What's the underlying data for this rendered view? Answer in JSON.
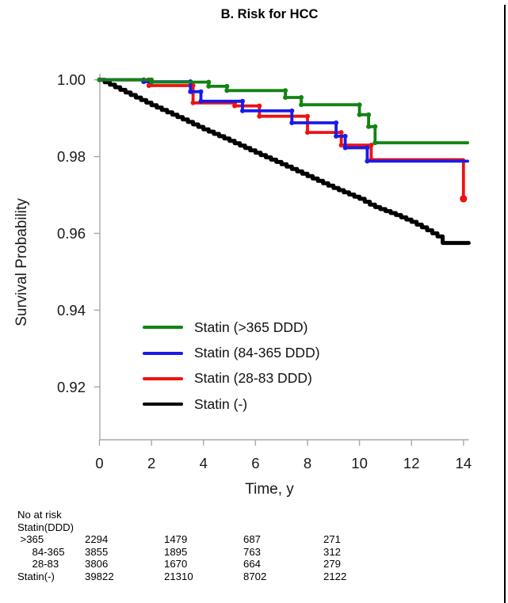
{
  "chart_data": {
    "type": "line",
    "subtype": "kaplan-meier-step",
    "title": "B. Risk for HCC",
    "xlabel": "Time, y",
    "ylabel": "Survival Probability",
    "xlim": [
      0,
      14.2
    ],
    "x_ticks": [
      0,
      2,
      4,
      6,
      8,
      10,
      12,
      14
    ],
    "ylim": [
      0.91,
      1.002
    ],
    "y_ticks": [
      "1.00",
      "0.98",
      "0.96",
      "0.94",
      "0.92"
    ],
    "grid": false,
    "legend_position": "inside-lower-left",
    "axis_color": "#a8a8a8",
    "series": [
      {
        "name": "Statin (>365 DDD)",
        "color": "#128312",
        "steps": [
          [
            0,
            1.0
          ],
          [
            2.0,
            0.9994
          ],
          [
            4.2,
            0.9983
          ],
          [
            4.9,
            0.9972
          ],
          [
            7.15,
            0.9954
          ],
          [
            7.76,
            0.9935
          ],
          [
            10.0,
            0.9909
          ],
          [
            10.35,
            0.9878
          ],
          [
            10.6,
            0.9836
          ]
        ],
        "end_t": 14.16
      },
      {
        "name": "Statin (84-365 DDD)",
        "color": "#1a1aea",
        "steps": [
          [
            0,
            1.0
          ],
          [
            1.7,
            0.9995
          ],
          [
            3.5,
            0.9969
          ],
          [
            3.9,
            0.9944
          ],
          [
            5.5,
            0.9919
          ],
          [
            7.4,
            0.9888
          ],
          [
            9.1,
            0.9853
          ],
          [
            9.45,
            0.9823
          ],
          [
            10.3,
            0.9788
          ]
        ],
        "end_t": 14.16
      },
      {
        "name": "Statin (28-83 DDD)",
        "color": "#ec1212",
        "steps": [
          [
            0,
            1.0
          ],
          [
            1.9,
            0.9985
          ],
          [
            3.6,
            0.994
          ],
          [
            5.2,
            0.9932
          ],
          [
            6.15,
            0.9905
          ],
          [
            8.0,
            0.9863
          ],
          [
            9.3,
            0.983
          ],
          [
            10.45,
            0.9792
          ]
        ],
        "end_t": 14.0,
        "terminal_drop": 0.969
      },
      {
        "name": "Statin (-)",
        "color": "#000000",
        "anchors": [
          [
            0,
            1.0
          ],
          [
            0.5,
            0.9984
          ],
          [
            1,
            0.9967
          ],
          [
            2,
            0.9934
          ],
          [
            3,
            0.9903
          ],
          [
            4,
            0.9871
          ],
          [
            5,
            0.9841
          ],
          [
            6,
            0.981
          ],
          [
            7,
            0.978
          ],
          [
            8,
            0.9749
          ],
          [
            9,
            0.9718
          ],
          [
            10,
            0.969
          ],
          [
            10.5,
            0.9671
          ],
          [
            11,
            0.9658
          ],
          [
            11.5,
            0.9645
          ],
          [
            12,
            0.963
          ],
          [
            12.5,
            0.9612
          ],
          [
            13,
            0.9592
          ],
          [
            13.2,
            0.9575
          ]
        ],
        "flat_from": 13.2,
        "end_t": 14.2
      }
    ]
  },
  "risk_table": {
    "header_lines": [
      "No at risk",
      "Statin(DDD)"
    ],
    "rows": [
      {
        "label": ">365",
        "values": [
          2294,
          1479,
          687,
          271
        ]
      },
      {
        "label": "84-365",
        "values": [
          3855,
          1895,
          763,
          312
        ]
      },
      {
        "label": "28-83",
        "values": [
          3806,
          1670,
          664,
          279
        ]
      },
      {
        "label": "Statin(-)",
        "values": [
          39822,
          21310,
          8702,
          2122
        ]
      }
    ]
  }
}
